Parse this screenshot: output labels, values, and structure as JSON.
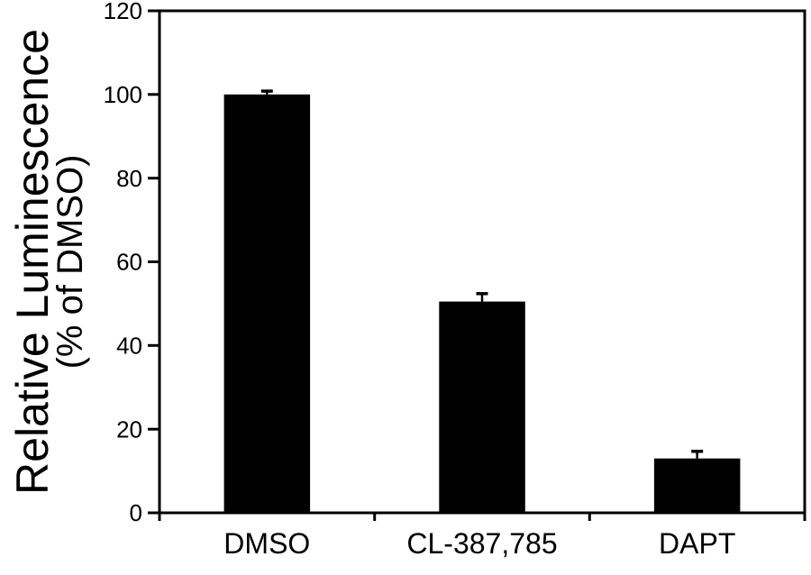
{
  "chart_data": {
    "type": "bar",
    "title": "",
    "ylabel_line1": "Relative Luminescence",
    "ylabel_line2": "(% of DMSO)",
    "xlabel": "",
    "categories": [
      "DMSO",
      "CL-387,785",
      "DAPT"
    ],
    "values": [
      100,
      50.5,
      13
    ],
    "errors": [
      0.8,
      1.9,
      1.7
    ],
    "ylim": [
      0,
      120
    ],
    "yticks": [
      0,
      20,
      40,
      60,
      80,
      100,
      120
    ],
    "bar_color": "#000000",
    "axis_color": "#000000",
    "text_color": "#000000",
    "background": "#ffffff",
    "grid": "off",
    "legend": "none",
    "error_bar_style": "upper-cap"
  }
}
